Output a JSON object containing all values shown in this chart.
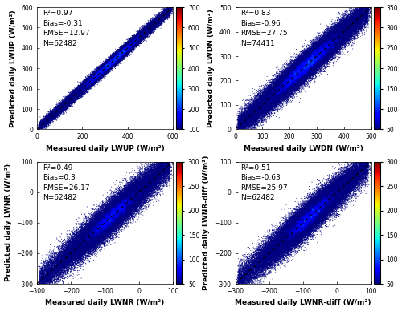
{
  "subplots": [
    {
      "xlabel": "Measured daily LWUP (W/m²)",
      "ylabel": "Predicted daily LWUP (W/m²)",
      "R2": 0.97,
      "Bias": -0.31,
      "RMSE": 12.97,
      "N": 62482,
      "xlim": [
        0,
        600
      ],
      "ylim": [
        0,
        600
      ],
      "xticks": [
        0,
        200,
        400,
        600
      ],
      "yticks": [
        0,
        100,
        200,
        300,
        400,
        500,
        600
      ],
      "cbar_min": 100,
      "cbar_max": 700,
      "cbar_ticks": [
        100,
        200,
        300,
        400,
        500,
        600,
        700
      ],
      "x_mean": 330,
      "x_std": 95,
      "noise_std": 12.97,
      "n_points": 62482
    },
    {
      "xlabel": "Measured daily LWDN (W/m²)",
      "ylabel": "Predicted daily LWDN (W/m²)",
      "R2": 0.83,
      "Bias": -0.96,
      "RMSE": 27.75,
      "N": 74411,
      "xlim": [
        0,
        500
      ],
      "ylim": [
        0,
        500
      ],
      "xticks": [
        0,
        100,
        200,
        300,
        400,
        500
      ],
      "yticks": [
        0,
        100,
        200,
        300,
        400,
        500
      ],
      "cbar_min": 50,
      "cbar_max": 350,
      "cbar_ticks": [
        50,
        100,
        150,
        200,
        250,
        300,
        350
      ],
      "x_mean": 260,
      "x_std": 80,
      "noise_std": 27.75,
      "n_points": 74411
    },
    {
      "xlabel": "Measured daily LWNR (W/m²)",
      "ylabel": "Predicted daily LWNR (W/m²)",
      "R2": 0.49,
      "Bias": 0.3,
      "RMSE": 26.17,
      "N": 62482,
      "xlim": [
        -300,
        100
      ],
      "ylim": [
        -300,
        100
      ],
      "xticks": [
        -300,
        -200,
        -100,
        0,
        100
      ],
      "yticks": [
        -300,
        -200,
        -100,
        0,
        100
      ],
      "cbar_min": 50,
      "cbar_max": 300,
      "cbar_ticks": [
        50,
        100,
        150,
        200,
        250,
        300
      ],
      "x_mean": -80,
      "x_std": 55,
      "noise_std": 26.17,
      "n_points": 62482
    },
    {
      "xlabel": "Measured daily LWNR-diff (W/m²)",
      "ylabel": "Predicted daily LWNR-diff (W/m²)",
      "R2": 0.51,
      "Bias": -0.63,
      "RMSE": 25.97,
      "N": 62482,
      "xlim": [
        -300,
        100
      ],
      "ylim": [
        -300,
        100
      ],
      "xticks": [
        -300,
        -200,
        -100,
        0,
        100
      ],
      "yticks": [
        -300,
        -200,
        -100,
        0,
        100
      ],
      "cbar_min": 50,
      "cbar_max": 300,
      "cbar_ticks": [
        50,
        100,
        150,
        200,
        250,
        300
      ],
      "x_mean": -80,
      "x_std": 55,
      "noise_std": 25.97,
      "n_points": 62482
    }
  ],
  "colormap": "jet",
  "fig_bg": "#ffffff",
  "text_fontsize": 6.5,
  "label_fontsize": 6.5,
  "tick_fontsize": 5.5
}
